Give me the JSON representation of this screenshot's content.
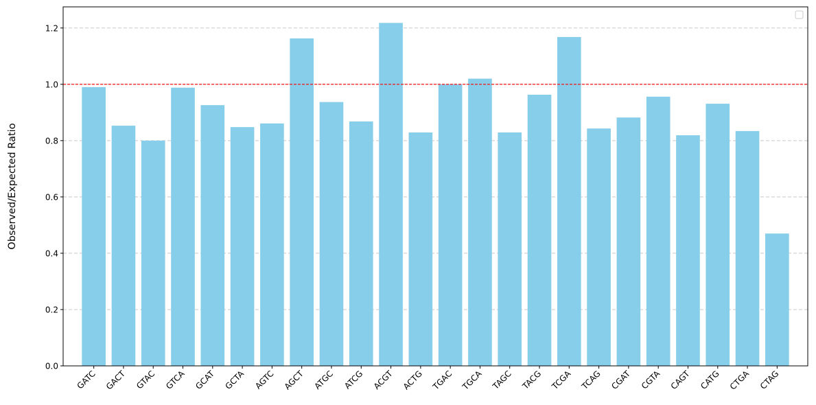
{
  "chart_data": {
    "type": "bar",
    "title": "",
    "xlabel": "",
    "ylabel": "Observed/Expected Ratio",
    "categories": [
      "GATC",
      "GACT",
      "GTAC",
      "GTCA",
      "GCAT",
      "GCTA",
      "AGTC",
      "AGCT",
      "ATGC",
      "ATCG",
      "ACGT",
      "ACTG",
      "TGAC",
      "TGCA",
      "TAGC",
      "TACG",
      "TCGA",
      "TCAG",
      "CGAT",
      "CGTA",
      "CAGT",
      "CATG",
      "CTGA",
      "CTAG"
    ],
    "values": [
      0.99,
      0.853,
      0.8,
      0.988,
      0.926,
      0.848,
      0.861,
      1.163,
      0.937,
      0.868,
      1.218,
      0.829,
      1.0,
      1.02,
      0.829,
      0.963,
      1.168,
      0.843,
      0.882,
      0.956,
      0.819,
      0.931,
      0.834,
      0.47
    ],
    "ylim": [
      0,
      1.275
    ],
    "yticks": [
      "0.0",
      "0.2",
      "0.4",
      "0.6",
      "0.8",
      "1.0",
      "1.2"
    ],
    "reference_line": 1.0,
    "grid": "y-dashed",
    "legend": "top-right (empty)",
    "colors": {
      "bar": "#87ceeb",
      "reference_line": "#ff0000",
      "grid": "#c8c8c8"
    }
  }
}
